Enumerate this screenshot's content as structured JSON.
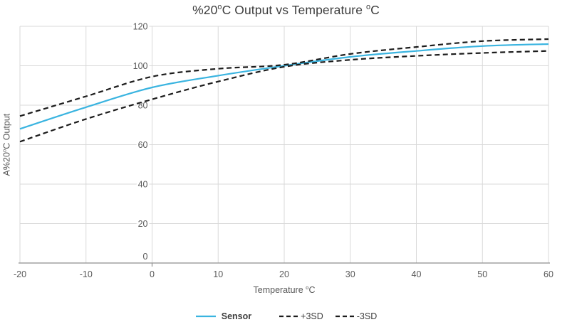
{
  "title": "%20ºC Output vs Temperature ºC",
  "chart_data": {
    "type": "line",
    "title": "%20ºC Output vs Temperature ºC",
    "xlabel": "Temperature ºC",
    "ylabel": "A%20ºC Output",
    "x": [
      -20,
      -10,
      0,
      10,
      20,
      30,
      40,
      50,
      60
    ],
    "series": [
      {
        "name": "Sensor",
        "color": "#3ab4e0",
        "dash": "solid",
        "values": [
          68,
          79,
          89,
          95,
          100,
          104.5,
          107.5,
          110,
          111
        ]
      },
      {
        "name": "+3SD",
        "color": "#1c1c1c",
        "dash": "dashed",
        "values": [
          74.5,
          84.5,
          94.5,
          98.5,
          100.5,
          106,
          109.5,
          112.5,
          113.5
        ]
      },
      {
        "name": "-3SD",
        "color": "#1c1c1c",
        "dash": "dashed",
        "values": [
          61.5,
          73,
          83,
          92,
          99.5,
          103,
          105,
          106.5,
          107.5
        ]
      }
    ],
    "xlim": [
      -20,
      60
    ],
    "ylim": [
      0,
      120
    ],
    "x_ticks": [
      -20,
      -10,
      0,
      10,
      20,
      30,
      40,
      50,
      60
    ],
    "y_ticks": [
      0,
      20,
      40,
      60,
      80,
      100,
      120
    ],
    "grid": true,
    "legend_position": "bottom",
    "gridline_color": "#d9d9d9",
    "axis_line_color": "#8f8f8f",
    "tick_label_color": "#595959"
  }
}
